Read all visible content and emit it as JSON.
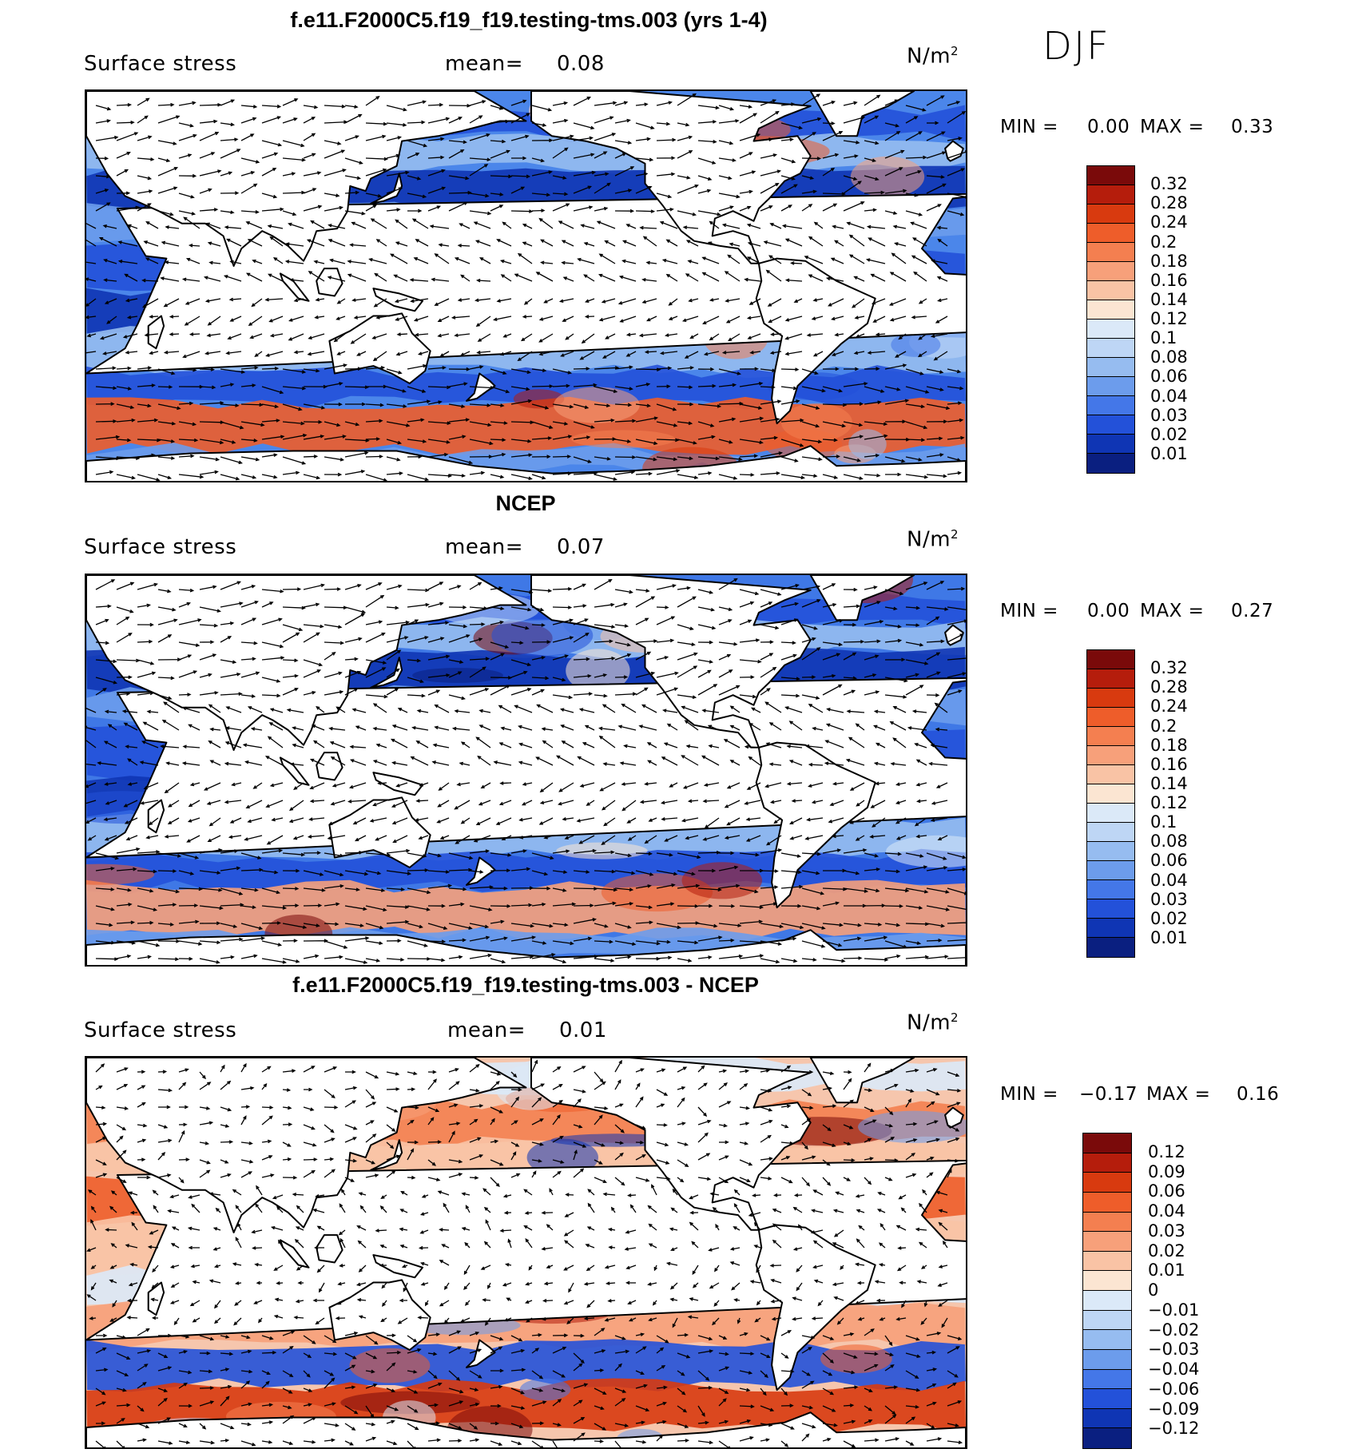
{
  "season": "DJF",
  "icons": {
    "arrow": "wind-stress-vector-icon",
    "continents": "coastline-outline"
  },
  "panels": [
    {
      "title": "f.e11.F2000C5.f19_f19.testing-tms.003 (yrs 1-4)",
      "variable": "Surface stress",
      "mean_label": "mean=",
      "mean_value": "0.08",
      "units": "N/m",
      "units_exp": "2",
      "min_label": "MIN =",
      "min_value": "0.00",
      "max_label": "MAX =",
      "max_value": "0.33",
      "levels": [
        "0.32",
        "0.28",
        "0.24",
        "0.2",
        "0.18",
        "0.16",
        "0.14",
        "0.12",
        "0.1",
        "0.08",
        "0.06",
        "0.04",
        "0.03",
        "0.02",
        "0.01"
      ],
      "colors": [
        "#7a0a0a",
        "#b51d0c",
        "#d83a0f",
        "#ee5d2a",
        "#f47f50",
        "#f7a07a",
        "#f9c3a5",
        "#fbe5d2",
        "#dbe9f8",
        "#bed6f5",
        "#96bcf0",
        "#6c9cec",
        "#4477e8",
        "#2351d9",
        "#0f35b4",
        "#0a1f80"
      ],
      "seed": 11,
      "palette": "abs",
      "bg": "#4b86ea"
    },
    {
      "title": "NCEP",
      "variable": "Surface stress",
      "mean_label": "mean=",
      "mean_value": "0.07",
      "units": "N/m",
      "units_exp": "2",
      "min_label": "MIN =",
      "min_value": "0.00",
      "max_label": "MAX =",
      "max_value": "0.27",
      "levels": [
        "0.32",
        "0.28",
        "0.24",
        "0.2",
        "0.18",
        "0.16",
        "0.14",
        "0.12",
        "0.1",
        "0.08",
        "0.06",
        "0.04",
        "0.03",
        "0.02",
        "0.01"
      ],
      "colors": [
        "#7a0a0a",
        "#b51d0c",
        "#d83a0f",
        "#ee5d2a",
        "#f47f50",
        "#f7a07a",
        "#f9c3a5",
        "#fbe5d2",
        "#dbe9f8",
        "#bed6f5",
        "#96bcf0",
        "#6c9cec",
        "#4477e8",
        "#2351d9",
        "#0f35b4",
        "#0a1f80"
      ],
      "seed": 23,
      "palette": "abs",
      "bg": "#3f78e6"
    },
    {
      "title": "f.e11.F2000C5.f19_f19.testing-tms.003 - NCEP",
      "variable": "Surface stress",
      "mean_label": "mean=",
      "mean_value": "0.01",
      "units": "N/m",
      "units_exp": "2",
      "min_label": "MIN =",
      "min_value": "−0.17",
      "max_label": "MAX =",
      "max_value": "0.16",
      "levels": [
        "0.12",
        "0.09",
        "0.06",
        "0.04",
        "0.03",
        "0.02",
        "0.01",
        "0",
        "−0.01",
        "−0.02",
        "−0.03",
        "−0.04",
        "−0.06",
        "−0.09",
        "−0.12"
      ],
      "colors": [
        "#7a0a0a",
        "#b51d0c",
        "#d83a0f",
        "#ee5d2a",
        "#f47f50",
        "#f7a07a",
        "#f9c3a5",
        "#fbe5d2",
        "#dbe9f8",
        "#bed6f5",
        "#96bcf0",
        "#6c9cec",
        "#4477e8",
        "#2351d9",
        "#0f35b4",
        "#0a1f80"
      ],
      "seed": 37,
      "palette": "diff",
      "bg": "#f6c6ad"
    }
  ]
}
